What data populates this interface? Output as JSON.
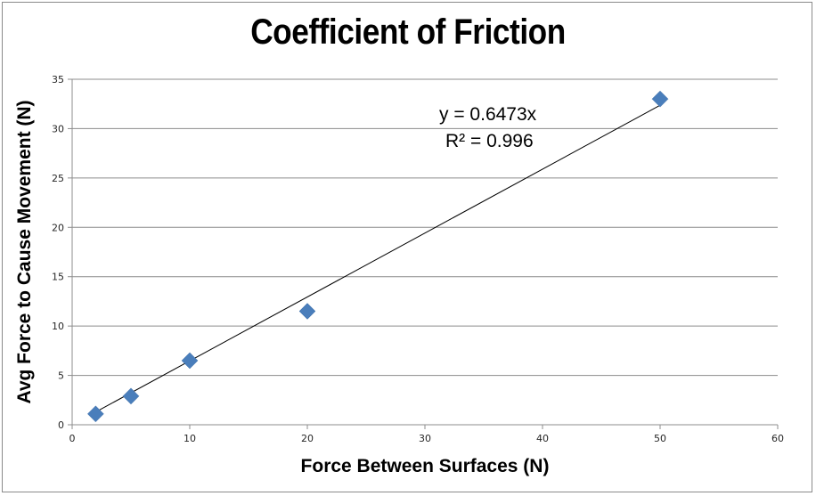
{
  "chart_data": {
    "type": "scatter",
    "title": "Coefficient of Friction",
    "xlabel": "Force Between Surfaces (N)",
    "ylabel": "Avg Force to Cause Movement (N)",
    "xlim": [
      0,
      60
    ],
    "ylim": [
      0,
      35
    ],
    "xticks": [
      0,
      10,
      20,
      30,
      40,
      50,
      60
    ],
    "yticks": [
      0,
      5,
      10,
      15,
      20,
      25,
      30,
      35
    ],
    "grid": {
      "horizontal": true,
      "vertical": false
    },
    "legend": null,
    "series": [
      {
        "name": "Series1",
        "marker": "diamond",
        "color": "#4a7ebb",
        "x": [
          2,
          5,
          10,
          20,
          50
        ],
        "y": [
          1.1,
          2.9,
          6.5,
          11.5,
          33
        ]
      }
    ],
    "trendline": {
      "type": "linear",
      "intercept": 0,
      "slope": 0.6473,
      "x_range": [
        2,
        50
      ],
      "color": "#000000",
      "equation_label": "y = 0.6473x",
      "r_squared_label": "R² = 0.996"
    }
  },
  "labels": {
    "title": "Coefficient of Friction",
    "xlabel": "Force Between Surfaces (N)",
    "ylabel": "Avg Force to Cause Movement (N)",
    "equation": "y = 0.6473x",
    "r_squared": "R² = 0.996"
  }
}
